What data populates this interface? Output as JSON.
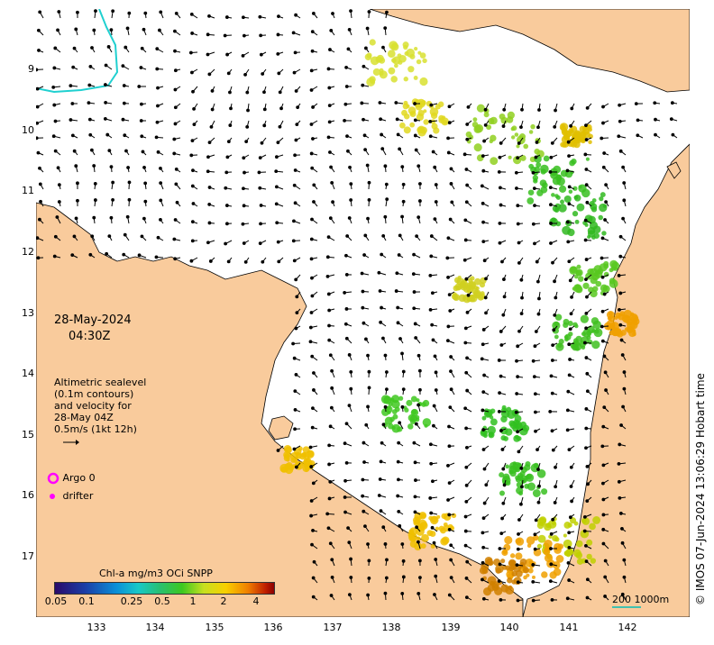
{
  "map": {
    "date_label": "28-May-2024",
    "time_label": "04:30Z",
    "velocity_note": [
      "Altimetric sealevel",
      "(0.1m contours)",
      "and velocity for",
      "28-May 04Z",
      "0.5m/s (1kt 12h)"
    ],
    "legend_argo": "Argo 0",
    "legend_drifter": "drifter",
    "colorbar_title": "Chl-a mg/m3 OCi SNPP",
    "colorbar_ticks": [
      "0.05",
      "0.1",
      "0.25",
      "0.5",
      "1",
      "2",
      "4"
    ],
    "scale_label": "200  1000m",
    "copyright": "© IMOS 07-Jun-2024 13:06:29 Hobart time",
    "lat_ticks": [
      "9",
      "10",
      "11",
      "12",
      "13",
      "14",
      "15",
      "16",
      "17"
    ],
    "lon_ticks": [
      "133",
      "134",
      "135",
      "136",
      "137",
      "138",
      "139",
      "140",
      "141",
      "142"
    ],
    "colors": {
      "land": "#f9cb9c",
      "coast": "#000000",
      "contour": "#20d0d0",
      "argo": "#ff00ff",
      "scale": "#40c0b0"
    }
  }
}
